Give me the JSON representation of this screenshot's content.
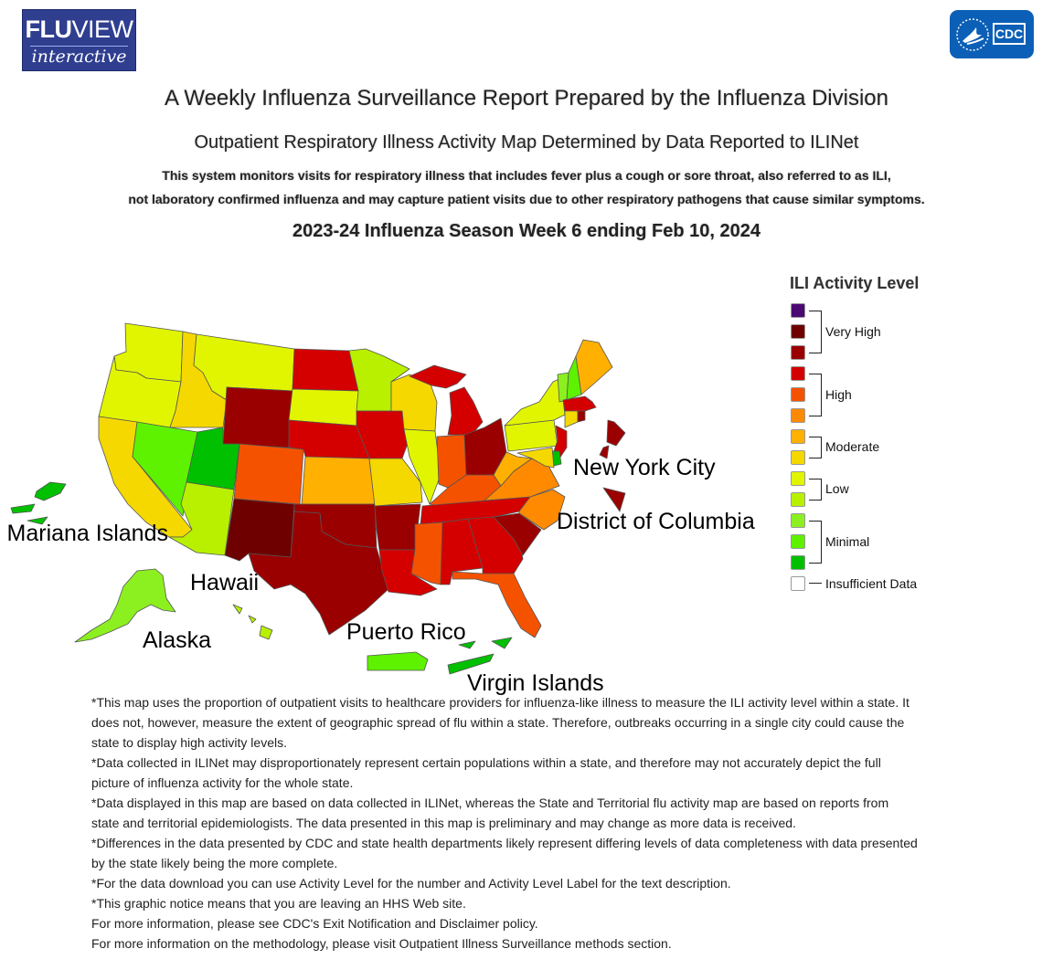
{
  "header": {
    "fluview_logo_line1_bold": "FLU",
    "fluview_logo_line1_light": "VIEW",
    "fluview_logo_line2": "interactive",
    "cdc_logo_text": "CDC"
  },
  "titles": {
    "main": "A Weekly Influenza Surveillance Report Prepared by the Influenza Division",
    "map_title": "Outpatient Respiratory Illness Activity Map Determined by Data Reported to ILINet",
    "description_line1": "This system monitors visits for respiratory illness that includes fever plus a cough or sore throat, also referred to as ILI,",
    "description_line2": "not laboratory confirmed influenza and may capture patient visits due to other respiratory pathogens that cause similar symptoms.",
    "season_week": "2023-24 Influenza Season Week 6 ending Feb 10, 2024"
  },
  "map": {
    "labels": {
      "new_york_city": "New York City",
      "district_of_columbia": "District of Columbia",
      "n_mariana_islands": "N. Mariana Islands",
      "hawaii": "Hawaii",
      "alaska": "Alaska",
      "puerto_rico": "Puerto Rico",
      "virgin_islands": "Virgin Islands"
    },
    "level_colors": {
      "13": "#4b0a72",
      "12": "#6e0000",
      "11": "#9b0000",
      "10": "#d40000",
      "9": "#f55200",
      "8": "#ff8a00",
      "7": "#ffb000",
      "6": "#f5d800",
      "5": "#e2f500",
      "4": "#b8f000",
      "3": "#8cf020",
      "2": "#5ef200",
      "1": "#00c000",
      "none": "#ffffff"
    },
    "regions": [
      {
        "name": "Washington",
        "level": 5
      },
      {
        "name": "Oregon",
        "level": 5
      },
      {
        "name": "California",
        "level": 6
      },
      {
        "name": "Idaho",
        "level": 6
      },
      {
        "name": "Nevada",
        "level": 2
      },
      {
        "name": "Montana",
        "level": 5
      },
      {
        "name": "Wyoming",
        "level": 11
      },
      {
        "name": "Utah",
        "level": 1
      },
      {
        "name": "Arizona",
        "level": 4
      },
      {
        "name": "Colorado",
        "level": 9
      },
      {
        "name": "New Mexico",
        "level": 12
      },
      {
        "name": "North Dakota",
        "level": 10
      },
      {
        "name": "South Dakota",
        "level": 5
      },
      {
        "name": "Nebraska",
        "level": 10
      },
      {
        "name": "Kansas",
        "level": 7
      },
      {
        "name": "Oklahoma",
        "level": 11
      },
      {
        "name": "Texas",
        "level": 11
      },
      {
        "name": "Minnesota",
        "level": 4
      },
      {
        "name": "Iowa",
        "level": 10
      },
      {
        "name": "Missouri",
        "level": 6
      },
      {
        "name": "Arkansas",
        "level": 11
      },
      {
        "name": "Louisiana",
        "level": 10
      },
      {
        "name": "Wisconsin",
        "level": 6
      },
      {
        "name": "Illinois",
        "level": 5
      },
      {
        "name": "Michigan",
        "level": 10
      },
      {
        "name": "Indiana",
        "level": 9
      },
      {
        "name": "Ohio",
        "level": 11
      },
      {
        "name": "Kentucky",
        "level": 9
      },
      {
        "name": "Tennessee",
        "level": 10
      },
      {
        "name": "Mississippi",
        "level": 9
      },
      {
        "name": "Alabama",
        "level": 10
      },
      {
        "name": "Georgia",
        "level": 10
      },
      {
        "name": "Florida",
        "level": 9
      },
      {
        "name": "South Carolina",
        "level": 11
      },
      {
        "name": "North Carolina",
        "level": 8
      },
      {
        "name": "Virginia",
        "level": 8
      },
      {
        "name": "West Virginia",
        "level": 7
      },
      {
        "name": "Pennsylvania",
        "level": 5
      },
      {
        "name": "New York",
        "level": 5
      },
      {
        "name": "Vermont",
        "level": 3
      },
      {
        "name": "New Hampshire",
        "level": 2
      },
      {
        "name": "Maine",
        "level": 7
      },
      {
        "name": "Massachusetts",
        "level": 10
      },
      {
        "name": "Connecticut",
        "level": 6
      },
      {
        "name": "New Jersey",
        "level": 10
      },
      {
        "name": "Delaware",
        "level": 1
      },
      {
        "name": "Maryland",
        "level": 6
      },
      {
        "name": "Rhode Island",
        "level": 11
      },
      {
        "name": "New York City",
        "level": 11
      },
      {
        "name": "District of Columbia",
        "level": 11
      },
      {
        "name": "Alaska",
        "level": 3
      },
      {
        "name": "Hawaii",
        "level": 4
      },
      {
        "name": "Puerto Rico",
        "level": 2
      },
      {
        "name": "Virgin Islands",
        "level": 1
      },
      {
        "name": "N. Mariana Islands",
        "level": 1
      }
    ]
  },
  "legend": {
    "title": "ILI Activity Level",
    "groups": {
      "very_high": "Very High",
      "high": "High",
      "moderate": "Moderate",
      "low": "Low",
      "minimal": "Minimal",
      "insufficient": "Insufficient Data"
    }
  },
  "notes": [
    "*This map uses the proportion of outpatient visits to healthcare providers for influenza-like illness to measure the ILI activity level within a state. It does not, however, measure the extent of geographic spread of flu within a state. Therefore, outbreaks occurring in a single city could cause the state to display high activity levels.",
    "*Data collected in ILINet may disproportionately represent certain populations within a state, and therefore may not accurately depict the full picture of influenza activity for the whole state.",
    "*Data displayed in this map are based on data collected in ILINet, whereas the State and Territorial flu activity map are based on reports from state and territorial epidemiologists. The data presented in this map is preliminary and may change as more data is received.",
    "*Differences in the data presented by CDC and state health departments likely represent differing levels of data completeness with data presented by the state likely being the more complete.",
    "*For the data download you can use Activity Level for the number and Activity Level Label for the text description.",
    "*This graphic notice means that you are leaving an HHS Web site.",
    "For more information, please see CDC's Exit Notification and Disclaimer policy.",
    "For more information on the methodology, please visit Outpatient Illness Surveillance methods section."
  ]
}
